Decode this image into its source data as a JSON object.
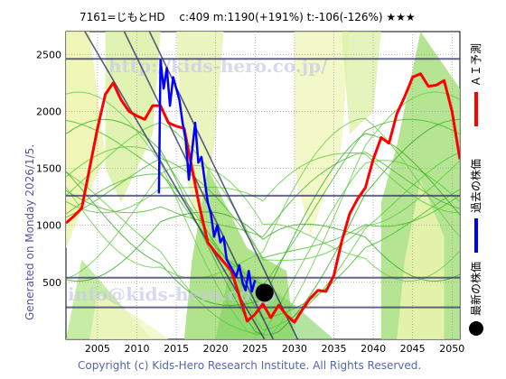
{
  "chart_data": {
    "type": "line",
    "title": "7161=じもとHD　 c:409  m:1190(+191%)  t:-106(-126%)  ★★★",
    "xlim": [
      2001.0,
      2051.0
    ],
    "ylim": [
      0,
      2700
    ],
    "x_ticks": [
      2005,
      2010,
      2015,
      2020,
      2025,
      2030,
      2035,
      2040,
      2045,
      2050
    ],
    "y_ticks": [
      500,
      1000,
      1500,
      2000,
      2500
    ],
    "grid": true,
    "horizontal_lines": [
      2460,
      1260,
      540,
      280
    ],
    "trend_lines": [
      {
        "x": [
          2003.4,
          2026.2
        ],
        "y": [
          2700,
          0
        ]
      },
      {
        "x": [
          2008.4,
          2027.3
        ],
        "y": [
          2700,
          0
        ]
      },
      {
        "x": [
          2011.6,
          2030.4
        ],
        "y": [
          2700,
          0
        ]
      }
    ],
    "series": [
      {
        "name": "ＡＩ予測",
        "color": "#ff0000",
        "x": [
          2001,
          2002,
          2003,
          2004,
          2005,
          2006,
          2007,
          2008,
          2009,
          2010,
          2011,
          2012,
          2013,
          2014,
          2015,
          2016,
          2017,
          2018,
          2019,
          2020,
          2021,
          2022,
          2023,
          2024,
          2025,
          2026,
          2027,
          2028,
          2029,
          2030,
          2031,
          2032,
          2033,
          2034,
          2035,
          2036,
          2037,
          2038,
          2039,
          2040,
          2041,
          2042,
          2043,
          2044,
          2045,
          2046,
          2047,
          2048,
          2049,
          2050,
          2051
        ],
        "y": [
          1020,
          1080,
          1150,
          1500,
          1850,
          2150,
          2250,
          2100,
          2000,
          1960,
          1930,
          2050,
          2050,
          1900,
          1870,
          1850,
          1500,
          1150,
          850,
          760,
          680,
          600,
          380,
          160,
          220,
          310,
          190,
          300,
          210,
          150,
          260,
          360,
          430,
          420,
          560,
          860,
          1100,
          1230,
          1330,
          1580,
          1770,
          1720,
          1980,
          2130,
          2300,
          2330,
          2220,
          2230,
          2270,
          2000,
          1580
        ]
      },
      {
        "name": "過去の株価",
        "color": "#0000ff",
        "x": [
          2012.8,
          2013.0,
          2013.4,
          2013.8,
          2014.2,
          2014.6,
          2015.0,
          2015.4,
          2015.8,
          2016.2,
          2016.6,
          2017.0,
          2017.4,
          2017.8,
          2018.2,
          2018.6,
          2019.0,
          2019.4,
          2019.8,
          2020.2,
          2020.6,
          2021.0,
          2021.4,
          2021.8,
          2022.2,
          2022.6,
          2023.0,
          2023.4,
          2023.8,
          2024.2,
          2024.6,
          2025.0
        ],
        "y": [
          1280,
          2450,
          2200,
          2380,
          2050,
          2300,
          2200,
          2100,
          1900,
          1750,
          1400,
          1650,
          1900,
          1550,
          1600,
          1400,
          1200,
          1100,
          900,
          1000,
          850,
          900,
          700,
          650,
          600,
          550,
          650,
          500,
          430,
          600,
          420,
          520
        ]
      }
    ],
    "current_point": {
      "x": 2026.2,
      "y": 409
    },
    "right_labels": {
      "ai": "ＡＩ予測",
      "past": "過去の株価",
      "latest": "最新の株価"
    },
    "left_label": "Generated on Monday 2026/1/5.",
    "copyright": "Copyright (c) Kids-Hero Research Institute. All Rights Reserved.",
    "watermarks": [
      "http://kids-hero.co.jp/",
      "info@kids-hero.co.jp"
    ]
  }
}
